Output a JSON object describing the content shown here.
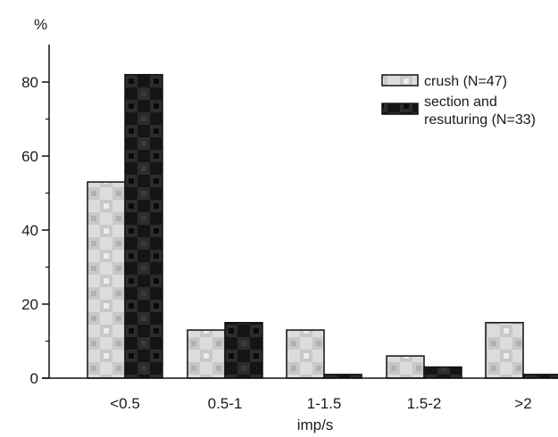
{
  "chart_data": {
    "type": "bar",
    "categories": [
      "<0.5",
      "0.5-1",
      "1-1.5",
      "1.5-2",
      ">2"
    ],
    "series": [
      {
        "name": "crush (N=47)",
        "values": [
          53,
          13,
          13,
          6,
          15
        ],
        "color": "#d9d9d9",
        "pattern": "light-checker"
      },
      {
        "name": "section and resuturing (N=33)",
        "values": [
          82,
          15,
          1,
          3,
          1
        ],
        "color": "#1e1e1e",
        "pattern": "dark-checker"
      }
    ],
    "xlabel": "imp/s",
    "ylabel": "%",
    "ylim": [
      0,
      90
    ],
    "yticks": [
      0,
      20,
      40,
      60,
      80
    ],
    "legend": {
      "placement": "top-right",
      "entries": [
        "crush (N=47)",
        "section and",
        "resuturing (N=33)"
      ]
    },
    "grid": false
  }
}
